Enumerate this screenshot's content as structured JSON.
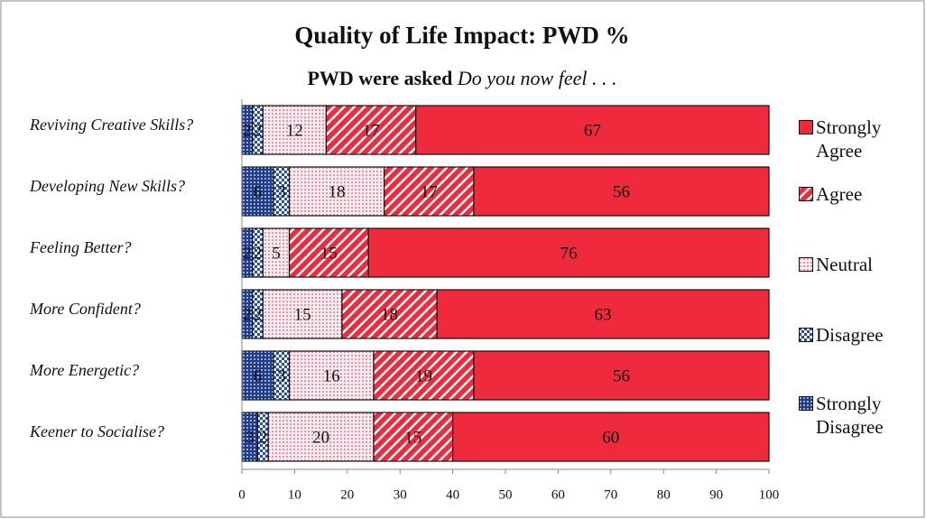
{
  "chart_data": {
    "type": "stacked_barh",
    "title": "Quality of Life Impact: PWD %",
    "subtitle_bold": "PWD were asked",
    "subtitle_italic": "Do you now feel . . .",
    "categories": [
      "Reviving Creative Skills?",
      "Developing New Skills?",
      "Feeling Better?",
      "More Confident?",
      "More Energetic?",
      "Keener to Socialise?"
    ],
    "series": [
      {
        "name": "Strongly Disagree",
        "color": "#1f3d8a",
        "pattern": "dots",
        "values": [
          2,
          6,
          2,
          2,
          6,
          3
        ]
      },
      {
        "name": "Disagree",
        "color": "#2a4f9e",
        "pattern": "checker",
        "values": [
          2,
          3,
          2,
          2,
          3,
          2
        ]
      },
      {
        "name": "Neutral",
        "color": "#e0506a",
        "pattern": "sparse-dots",
        "values": [
          12,
          18,
          5,
          15,
          16,
          20
        ]
      },
      {
        "name": "Agree",
        "color": "#ef2a3c",
        "pattern": "stripes",
        "values": [
          17,
          17,
          15,
          18,
          19,
          15
        ]
      },
      {
        "name": "Strongly Agree",
        "color": "#ef2a3c",
        "pattern": "solid",
        "values": [
          67,
          56,
          76,
          63,
          56,
          60
        ]
      }
    ],
    "xlim": [
      0,
      100
    ],
    "xticks": [
      0,
      10,
      20,
      30,
      40,
      50,
      60,
      70,
      80,
      90,
      100
    ],
    "legend": "right"
  }
}
